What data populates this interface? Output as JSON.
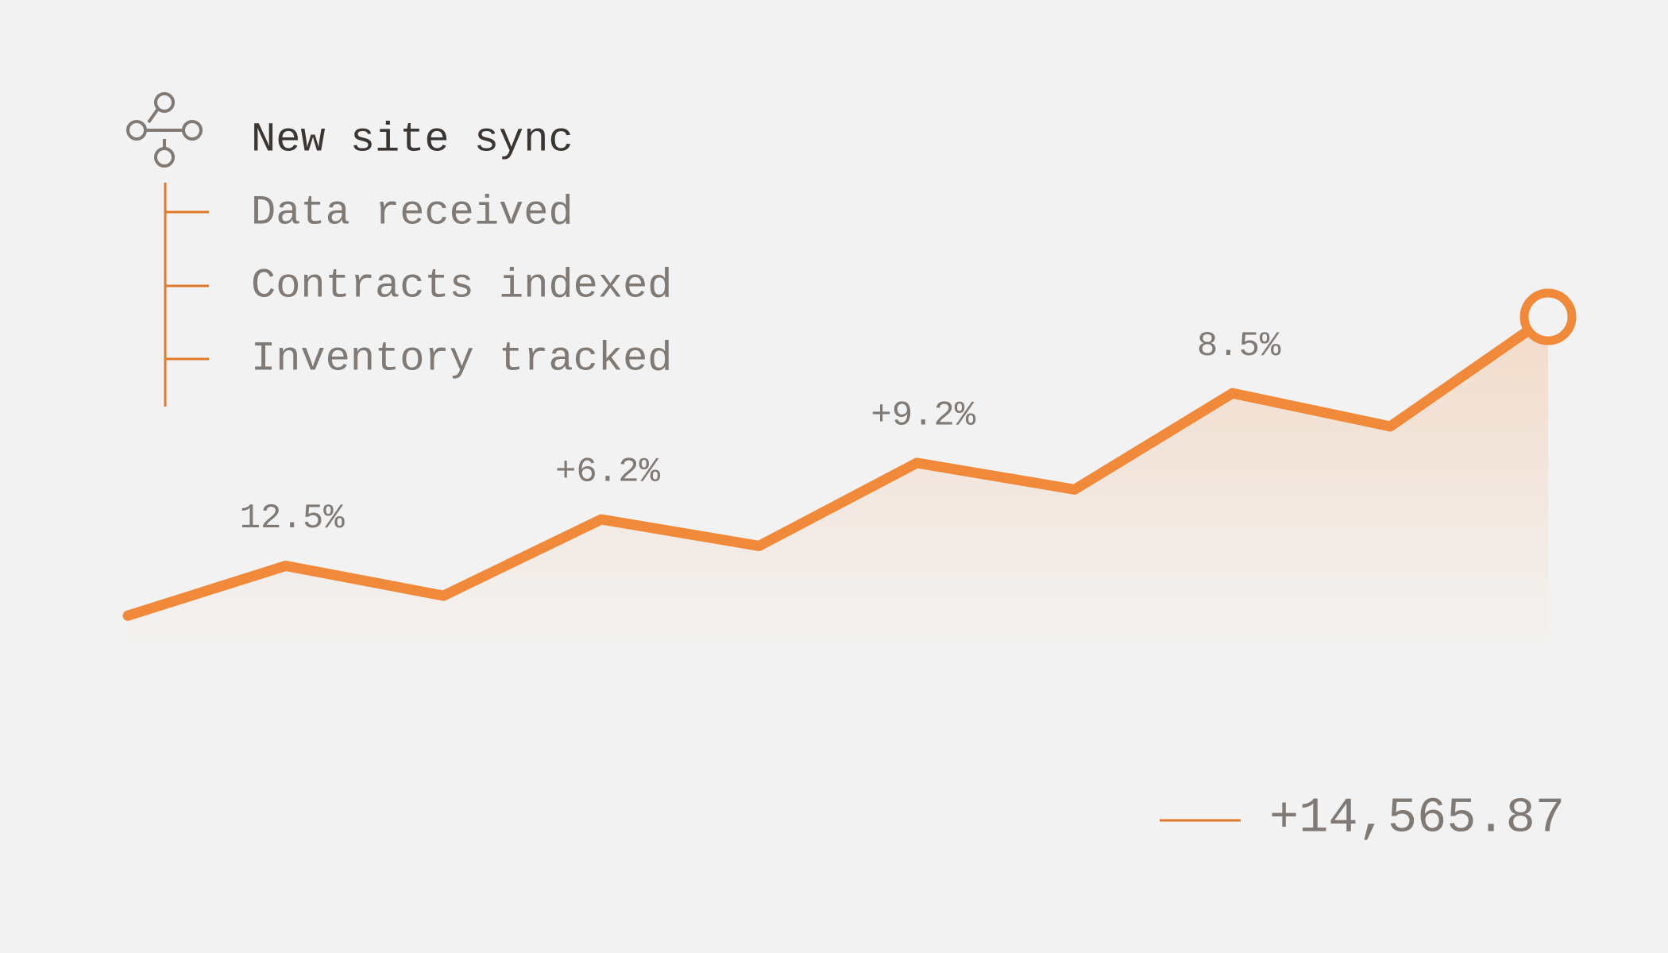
{
  "tree": {
    "title": "New site sync",
    "items": [
      "Data received",
      "Contracts indexed",
      "Inventory tracked"
    ]
  },
  "chart_data": {
    "type": "line",
    "series": [
      {
        "name": "+14,565.87",
        "color": "#f08a3a",
        "values": [
          10,
          25,
          16,
          39,
          31,
          56,
          48,
          77,
          67,
          100
        ]
      }
    ],
    "annotations": [
      "12.5%",
      "+6.2%",
      "+9.2%",
      "8.5%"
    ],
    "ylim": [
      0,
      100
    ]
  }
}
